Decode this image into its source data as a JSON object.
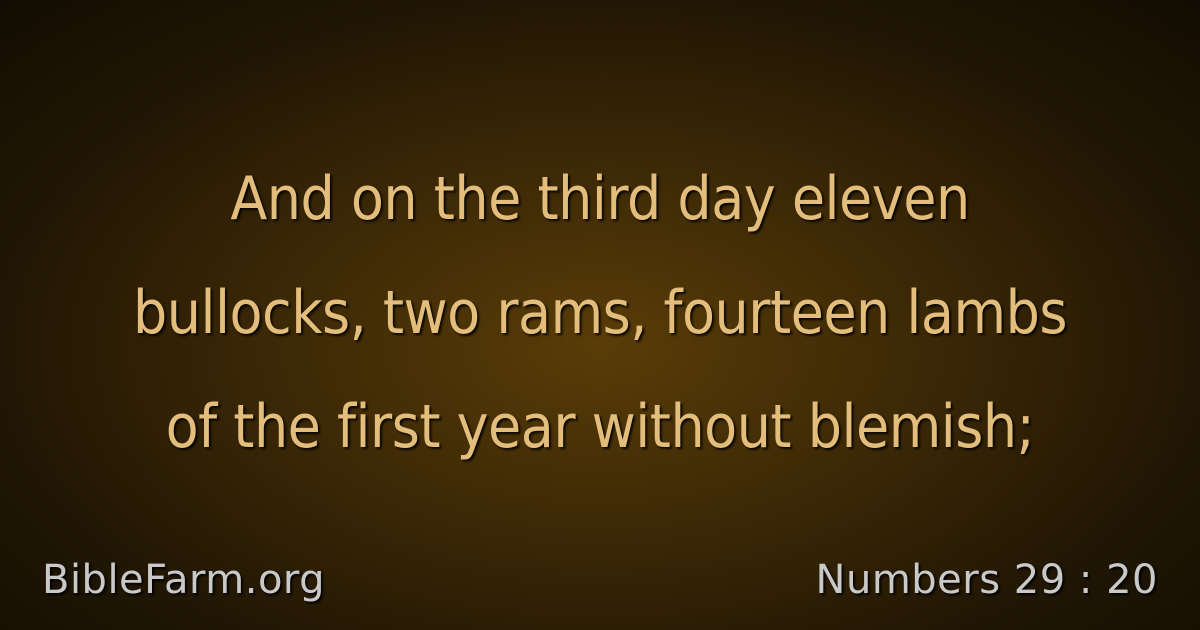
{
  "verse": {
    "lines": [
      "And on the third day eleven",
      "bullocks, two rams, fourteen lambs",
      "of the first year without blemish;"
    ]
  },
  "footer": {
    "site": "BibleFarm.org",
    "reference": "Numbers 29 : 20"
  },
  "colors": {
    "verse_text": "#e3bd7b",
    "footer_text": "#c9c9c9",
    "background_center": "#5a3d08",
    "background_edge": "#120c02"
  }
}
